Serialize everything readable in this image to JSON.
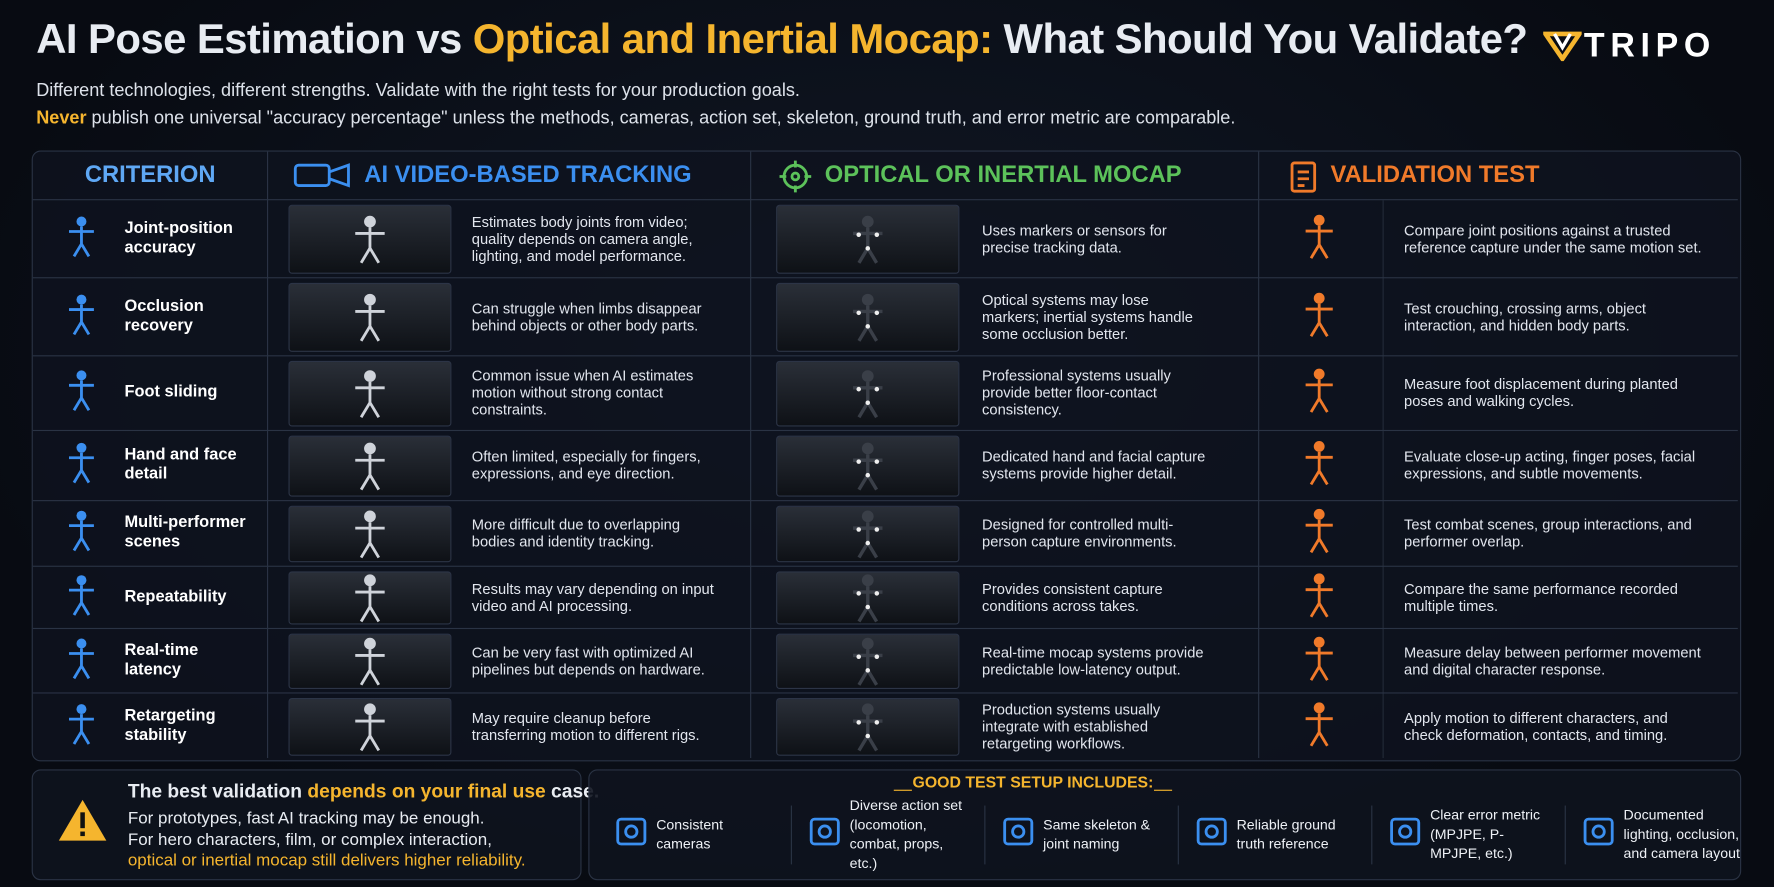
{
  "header": {
    "title": {
      "part1": "AI Pose Estimation vs ",
      "part2": "Optical and Inertial Mocap:",
      "part3": " What Should You Validate?"
    },
    "logo": "TRIPO",
    "subtitle": "Different technologies, different strengths. Validate with the right tests for your production goals.",
    "note": {
      "highlight": "Never",
      "text": " publish one universal \"accuracy percentage\" unless the methods, cameras, action set, skeleton, ground truth, and error metric are comparable."
    }
  },
  "table": {
    "headers": [
      "CRITERION",
      "AI VIDEO-BASED TRACKING",
      "OPTICAL OR INERTIAL MOCAP",
      "VALIDATION TEST"
    ],
    "rows": [
      [
        "Joint-position accuracy",
        "Estimates body joints from video; quality depends on camera angle, lighting, and model performance.",
        "Uses markers or sensors for precise tracking data.",
        "Compare joint positions against a trusted reference capture under the same motion set."
      ],
      [
        "Occlusion recovery",
        "Can struggle when limbs disappear behind objects or other body parts.",
        "Optical systems may lose markers; inertial systems handle some occlusion better.",
        "Test crouching, crossing arms, object interaction, and hidden body parts."
      ],
      [
        "Foot sliding",
        "Common issue when AI estimates motion without strong contact constraints.",
        "Professional systems usually provide better floor-contact consistency.",
        "Measure foot displacement during planted poses and walking cycles."
      ],
      [
        "Hand and face detail",
        "Often limited, especially for fingers, expressions, and eye direction.",
        "Dedicated hand and facial capture systems provide higher detail.",
        "Evaluate close-up acting, finger poses, facial expressions, and subtle movements."
      ],
      [
        "Multi-performer scenes",
        "More difficult due to overlapping bodies and identity tracking.",
        "Designed for controlled multi-person capture environments.",
        "Test combat scenes, group interactions, and performer overlap."
      ],
      [
        "Repeatability",
        "Results may vary depending on input video and AI processing.",
        "Provides consistent capture conditions across takes.",
        "Compare the same performance recorded multiple times."
      ],
      [
        "Real-time latency",
        "Can be very fast with optimized AI pipelines but depends on hardware.",
        "Real-time mocap systems provide predictable low-latency output.",
        "Measure delay between performer movement and digital character response."
      ],
      [
        "Retargeting stability",
        "May require cleanup before transferring motion to different rigs.",
        "Production systems usually integrate with established retargeting workflows.",
        "Apply motion to different characters, and check deformation, contacts, and timing."
      ]
    ]
  },
  "footer": {
    "advice": {
      "heading": {
        "part1": "The best validation ",
        "part2": "depends on your final use",
        "part3": " case."
      },
      "line1": "For prototypes, fast AI tracking may be enough.",
      "line2": "For hero characters, film, or complex interaction,",
      "line3": "optical or inertial mocap still delivers higher reliability."
    },
    "setup": {
      "title": "GOOD TEST SETUP INCLUDES:",
      "items": [
        "Consistent cameras",
        "Diverse action set (locomotion, combat, props, etc.)",
        "Same skeleton & joint naming",
        "Reliable ground truth reference",
        "Clear error metric (MPJPE, P-MPJPE, etc.)",
        "Documented lighting, occlusion, and camera layout"
      ]
    }
  }
}
